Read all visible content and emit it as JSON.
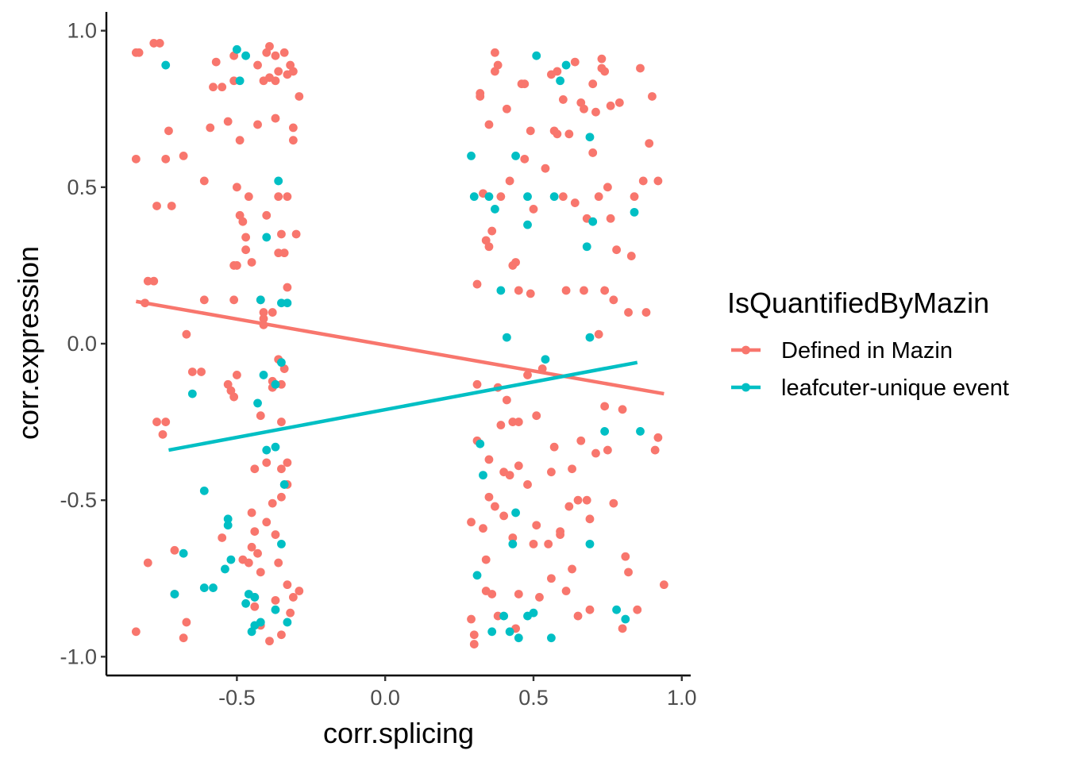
{
  "chart_data": {
    "type": "scatter",
    "title": "",
    "xlabel": "corr.splicing",
    "ylabel": "corr.expression",
    "xlim": [
      -0.94,
      1.03
    ],
    "ylim": [
      -1.06,
      1.06
    ],
    "x_ticks": [
      -0.5,
      0.0,
      0.5,
      1.0
    ],
    "x_tick_labels": [
      "-0.5",
      "0.0",
      "0.5",
      "1.0"
    ],
    "y_ticks": [
      -1.0,
      -0.5,
      0.0,
      0.5,
      1.0
    ],
    "y_tick_labels": [
      "-1.0",
      "-0.5",
      "0.0",
      "0.5",
      "1.0"
    ],
    "grid": false,
    "legend": {
      "title": "IsQuantifiedByMazin",
      "position": "right"
    },
    "series": [
      {
        "name": "Defined in Mazin",
        "color": "#F8766D",
        "trend": {
          "x": [
            -0.84,
            0.94
          ],
          "y": [
            0.135,
            -0.16
          ]
        },
        "points": [
          [
            -0.84,
            0.93
          ],
          [
            -0.83,
            0.93
          ],
          [
            -0.78,
            0.96
          ],
          [
            -0.76,
            0.96
          ],
          [
            -0.84,
            0.59
          ],
          [
            -0.74,
            0.59
          ],
          [
            -0.73,
            0.68
          ],
          [
            -0.77,
            0.44
          ],
          [
            -0.72,
            0.44
          ],
          [
            -0.8,
            0.2
          ],
          [
            -0.78,
            0.2
          ],
          [
            -0.81,
            0.13
          ],
          [
            -0.77,
            -0.25
          ],
          [
            -0.74,
            -0.25
          ],
          [
            -0.75,
            -0.29
          ],
          [
            -0.8,
            -0.7
          ],
          [
            -0.71,
            -0.66
          ],
          [
            -0.71,
            -0.8
          ],
          [
            -0.84,
            -0.92
          ],
          [
            -0.68,
            -0.94
          ],
          [
            -0.67,
            -0.89
          ],
          [
            -0.68,
            0.6
          ],
          [
            -0.67,
            0.03
          ],
          [
            -0.65,
            -0.09
          ],
          [
            -0.62,
            -0.09
          ],
          [
            -0.61,
            0.52
          ],
          [
            -0.61,
            0.14
          ],
          [
            -0.59,
            0.69
          ],
          [
            -0.58,
            0.82
          ],
          [
            -0.57,
            0.9
          ],
          [
            -0.55,
            0.82
          ],
          [
            -0.53,
            0.71
          ],
          [
            -0.51,
            0.84
          ],
          [
            -0.51,
            0.92
          ],
          [
            -0.55,
            -0.62
          ],
          [
            -0.53,
            -0.13
          ],
          [
            -0.52,
            -0.15
          ],
          [
            -0.51,
            -0.17
          ],
          [
            -0.51,
            0.14
          ],
          [
            -0.51,
            0.25
          ],
          [
            -0.5,
            0.25
          ],
          [
            -0.5,
            -0.1
          ],
          [
            -0.5,
            0.5
          ],
          [
            -0.49,
            0.65
          ],
          [
            -0.49,
            0.41
          ],
          [
            -0.48,
            0.39
          ],
          [
            -0.47,
            0.3
          ],
          [
            -0.46,
            0.47
          ],
          [
            -0.46,
            -0.7
          ],
          [
            -0.44,
            -0.4
          ],
          [
            -0.45,
            0.26
          ],
          [
            -0.45,
            -0.54
          ],
          [
            -0.44,
            -0.6
          ],
          [
            -0.44,
            -0.81
          ],
          [
            -0.43,
            0.89
          ],
          [
            -0.43,
            0.7
          ],
          [
            -0.42,
            0.14
          ],
          [
            -0.42,
            -0.23
          ],
          [
            -0.42,
            -0.73
          ],
          [
            -0.41,
            0.84
          ],
          [
            -0.41,
            0.08
          ],
          [
            -0.41,
            0.06
          ],
          [
            -0.4,
            0.41
          ],
          [
            -0.4,
            -0.38
          ],
          [
            -0.4,
            0.93
          ],
          [
            -0.39,
            0.95
          ],
          [
            -0.39,
            0.85
          ],
          [
            -0.38,
            0.1
          ],
          [
            -0.38,
            -0.12
          ],
          [
            -0.38,
            -0.14
          ],
          [
            -0.38,
            -0.51
          ],
          [
            -0.37,
            0.84
          ],
          [
            -0.37,
            0.72
          ],
          [
            -0.37,
            0.92
          ],
          [
            -0.36,
            0.47
          ],
          [
            -0.36,
            -0.05
          ],
          [
            -0.36,
            0.29
          ],
          [
            -0.36,
            -0.7
          ],
          [
            -0.36,
            0.87
          ],
          [
            -0.35,
            0.35
          ],
          [
            -0.35,
            -0.25
          ],
          [
            -0.35,
            -0.13
          ],
          [
            -0.35,
            -0.4
          ],
          [
            -0.35,
            -0.49
          ],
          [
            -0.35,
            -0.93
          ],
          [
            -0.34,
            0.93
          ],
          [
            -0.34,
            0.29
          ],
          [
            -0.34,
            -0.08
          ],
          [
            -0.33,
            0.18
          ],
          [
            -0.33,
            0.47
          ],
          [
            -0.33,
            -0.38
          ],
          [
            -0.33,
            -0.45
          ],
          [
            -0.33,
            -0.77
          ],
          [
            -0.33,
            0.86
          ],
          [
            -0.32,
            0.89
          ],
          [
            -0.31,
            0.87
          ],
          [
            -0.31,
            0.69
          ],
          [
            -0.31,
            0.65
          ],
          [
            -0.3,
            0.35
          ],
          [
            -0.29,
            0.79
          ],
          [
            -0.29,
            -0.79
          ],
          [
            -0.31,
            -0.81
          ],
          [
            -0.32,
            -0.86
          ],
          [
            -0.37,
            -0.82
          ],
          [
            -0.39,
            -0.95
          ],
          [
            -0.42,
            -0.9
          ],
          [
            -0.44,
            -0.84
          ],
          [
            -0.48,
            -0.69
          ],
          [
            -0.45,
            -0.65
          ],
          [
            -0.37,
            -0.61
          ],
          [
            -0.41,
            0.1
          ],
          [
            -0.4,
            -0.57
          ],
          [
            -0.43,
            -0.67
          ],
          [
            -0.47,
            0.34
          ],
          [
            0.29,
            -0.88
          ],
          [
            0.29,
            -0.57
          ],
          [
            0.3,
            -0.93
          ],
          [
            0.3,
            -0.96
          ],
          [
            0.31,
            0.19
          ],
          [
            0.31,
            -0.31
          ],
          [
            0.31,
            -0.13
          ],
          [
            0.32,
            0.79
          ],
          [
            0.32,
            0.8
          ],
          [
            0.33,
            0.48
          ],
          [
            0.33,
            -0.59
          ],
          [
            0.34,
            0.33
          ],
          [
            0.34,
            -0.69
          ],
          [
            0.34,
            -0.79
          ],
          [
            0.35,
            0.31
          ],
          [
            0.35,
            -0.37
          ],
          [
            0.35,
            0.7
          ],
          [
            0.35,
            -0.49
          ],
          [
            0.36,
            -0.8
          ],
          [
            0.36,
            0.36
          ],
          [
            0.37,
            0.87
          ],
          [
            0.37,
            -0.52
          ],
          [
            0.37,
            0.93
          ],
          [
            0.38,
            0.89
          ],
          [
            0.38,
            -0.14
          ],
          [
            0.38,
            -0.87
          ],
          [
            0.39,
            0.47
          ],
          [
            0.39,
            -0.26
          ],
          [
            0.4,
            -0.55
          ],
          [
            0.4,
            -0.41
          ],
          [
            0.41,
            0.75
          ],
          [
            0.41,
            -0.18
          ],
          [
            0.42,
            -0.42
          ],
          [
            0.42,
            0.52
          ],
          [
            0.43,
            -0.25
          ],
          [
            0.43,
            -0.62
          ],
          [
            0.43,
            0.25
          ],
          [
            0.44,
            -0.91
          ],
          [
            0.44,
            0.26
          ],
          [
            0.45,
            -0.25
          ],
          [
            0.45,
            -0.39
          ],
          [
            0.45,
            0.17
          ],
          [
            0.45,
            -0.8
          ],
          [
            0.46,
            0.83
          ],
          [
            0.47,
            0.83
          ],
          [
            0.47,
            0.59
          ],
          [
            0.48,
            -0.1
          ],
          [
            0.48,
            -0.45
          ],
          [
            0.49,
            0.16
          ],
          [
            0.49,
            0.68
          ],
          [
            0.5,
            0.43
          ],
          [
            0.5,
            -0.64
          ],
          [
            0.51,
            -0.58
          ],
          [
            0.51,
            -0.23
          ],
          [
            0.52,
            -0.81
          ],
          [
            0.53,
            -0.08
          ],
          [
            0.54,
            0.56
          ],
          [
            0.55,
            -0.64
          ],
          [
            0.56,
            0.86
          ],
          [
            0.56,
            -0.41
          ],
          [
            0.56,
            -0.75
          ],
          [
            0.57,
            -0.33
          ],
          [
            0.57,
            0.68
          ],
          [
            0.58,
            0.87
          ],
          [
            0.58,
            0.67
          ],
          [
            0.59,
            -0.6
          ],
          [
            0.59,
            -0.61
          ],
          [
            0.6,
            0.78
          ],
          [
            0.6,
            0.47
          ],
          [
            0.61,
            0.17
          ],
          [
            0.61,
            -0.79
          ],
          [
            0.62,
            0.67
          ],
          [
            0.62,
            -0.52
          ],
          [
            0.63,
            -0.4
          ],
          [
            0.63,
            -0.72
          ],
          [
            0.64,
            0.45
          ],
          [
            0.64,
            0.9
          ],
          [
            0.65,
            -0.5
          ],
          [
            0.65,
            -0.87
          ],
          [
            0.66,
            0.77
          ],
          [
            0.66,
            -0.31
          ],
          [
            0.67,
            0.75
          ],
          [
            0.67,
            0.17
          ],
          [
            0.68,
            0.4
          ],
          [
            0.68,
            -0.5
          ],
          [
            0.69,
            -0.85
          ],
          [
            0.69,
            -0.56
          ],
          [
            0.7,
            0.61
          ],
          [
            0.7,
            0.83
          ],
          [
            0.71,
            0.74
          ],
          [
            0.71,
            -0.35
          ],
          [
            0.72,
            0.47
          ],
          [
            0.72,
            0.03
          ],
          [
            0.73,
            0.88
          ],
          [
            0.73,
            0.91
          ],
          [
            0.74,
            0.87
          ],
          [
            0.74,
            0.17
          ],
          [
            0.74,
            -0.2
          ],
          [
            0.75,
            0.5
          ],
          [
            0.75,
            -0.34
          ],
          [
            0.76,
            0.76
          ],
          [
            0.76,
            0.4
          ],
          [
            0.77,
            -0.51
          ],
          [
            0.77,
            0.14
          ],
          [
            0.78,
            0.3
          ],
          [
            0.79,
            0.77
          ],
          [
            0.8,
            -0.21
          ],
          [
            0.8,
            -0.91
          ],
          [
            0.81,
            -0.68
          ],
          [
            0.82,
            0.1
          ],
          [
            0.82,
            -0.73
          ],
          [
            0.83,
            0.28
          ],
          [
            0.84,
            0.47
          ],
          [
            0.85,
            -0.85
          ],
          [
            0.86,
            0.88
          ],
          [
            0.87,
            0.52
          ],
          [
            0.88,
            0.1
          ],
          [
            0.89,
            0.64
          ],
          [
            0.9,
            0.79
          ],
          [
            0.91,
            -0.34
          ],
          [
            0.92,
            0.52
          ],
          [
            0.92,
            -0.3
          ],
          [
            0.94,
            -0.77
          ]
        ]
      },
      {
        "name": "leafcuter-unique event",
        "color": "#00BFC4",
        "trend": {
          "x": [
            -0.73,
            0.85
          ],
          "y": [
            -0.34,
            -0.06
          ]
        },
        "points": [
          [
            -0.74,
            0.89
          ],
          [
            -0.71,
            -0.8
          ],
          [
            -0.68,
            -0.67
          ],
          [
            -0.65,
            -0.16
          ],
          [
            -0.61,
            -0.47
          ],
          [
            -0.61,
            -0.78
          ],
          [
            -0.58,
            -0.78
          ],
          [
            -0.53,
            -0.56
          ],
          [
            -0.53,
            -0.58
          ],
          [
            -0.52,
            -0.69
          ],
          [
            -0.54,
            -0.72
          ],
          [
            -0.5,
            0.94
          ],
          [
            -0.47,
            0.92
          ],
          [
            -0.49,
            0.84
          ],
          [
            -0.47,
            -0.83
          ],
          [
            -0.46,
            -0.8
          ],
          [
            -0.45,
            -0.92
          ],
          [
            -0.44,
            -0.9
          ],
          [
            -0.44,
            -0.81
          ],
          [
            -0.43,
            -0.19
          ],
          [
            -0.42,
            -0.89
          ],
          [
            -0.42,
            0.14
          ],
          [
            -0.41,
            -0.1
          ],
          [
            -0.4,
            -0.34
          ],
          [
            -0.37,
            -0.85
          ],
          [
            -0.37,
            -0.33
          ],
          [
            -0.36,
            0.52
          ],
          [
            -0.35,
            0.13
          ],
          [
            -0.35,
            -0.06
          ],
          [
            -0.35,
            -0.64
          ],
          [
            -0.34,
            -0.45
          ],
          [
            -0.33,
            0.13
          ],
          [
            -0.33,
            -0.89
          ],
          [
            -0.4,
            0.34
          ],
          [
            -0.37,
            -0.13
          ],
          [
            0.29,
            0.6
          ],
          [
            0.3,
            0.47
          ],
          [
            0.31,
            -0.74
          ],
          [
            0.32,
            -0.32
          ],
          [
            0.33,
            -0.42
          ],
          [
            0.35,
            0.47
          ],
          [
            0.36,
            -0.92
          ],
          [
            0.37,
            0.43
          ],
          [
            0.39,
            0.17
          ],
          [
            0.4,
            -0.87
          ],
          [
            0.41,
            0.02
          ],
          [
            0.42,
            -0.92
          ],
          [
            0.43,
            -0.64
          ],
          [
            0.44,
            0.6
          ],
          [
            0.44,
            -0.54
          ],
          [
            0.45,
            -0.94
          ],
          [
            0.48,
            0.47
          ],
          [
            0.48,
            0.38
          ],
          [
            0.5,
            -0.86
          ],
          [
            0.51,
            0.92
          ],
          [
            0.54,
            -0.05
          ],
          [
            0.56,
            -0.94
          ],
          [
            0.57,
            0.47
          ],
          [
            0.59,
            0.84
          ],
          [
            0.61,
            0.89
          ],
          [
            0.68,
            0.31
          ],
          [
            0.69,
            0.02
          ],
          [
            0.69,
            -0.64
          ],
          [
            0.7,
            0.39
          ],
          [
            0.74,
            -0.28
          ],
          [
            0.78,
            -0.85
          ],
          [
            0.81,
            -0.88
          ],
          [
            0.84,
            0.42
          ],
          [
            0.86,
            -0.28
          ],
          [
            0.69,
            0.66
          ],
          [
            0.48,
            -0.87
          ]
        ]
      }
    ]
  }
}
